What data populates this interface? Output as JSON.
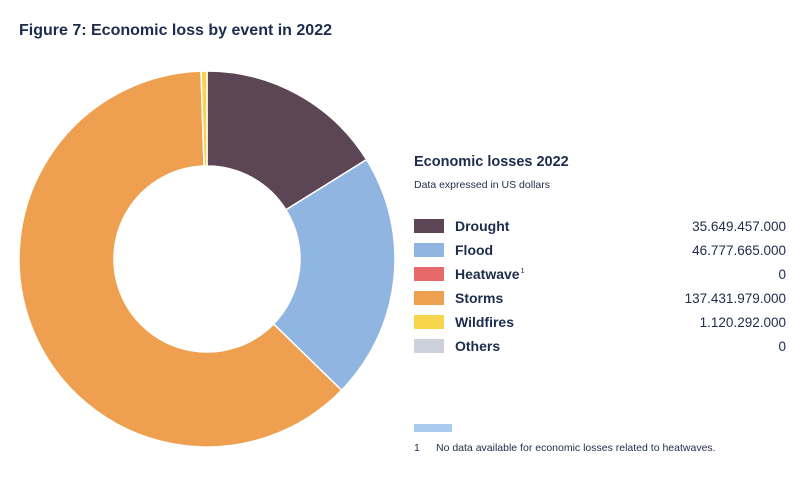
{
  "title": "Figure 7: Economic loss by event in 2022",
  "legend": {
    "title": "Economic losses 2022",
    "subtitle": "Data expressed in US dollars"
  },
  "footnote": {
    "marker": "1",
    "text": "No data available for economic losses related to heatwaves.",
    "bar_color": "#a9ccee"
  },
  "chart_data": {
    "type": "pie",
    "style": "donut",
    "title": "Figure 7: Economic loss by event in 2022",
    "categories": [
      {
        "name": "Drought",
        "value": 35649457000,
        "display": "35.649.457.000",
        "color": "#5c4655",
        "sup": ""
      },
      {
        "name": "Flood",
        "value": 46777665000,
        "display": "46.777.665.000",
        "color": "#8fb5e0",
        "sup": ""
      },
      {
        "name": "Heatwave",
        "value": 0,
        "display": "0",
        "color": "#e8696a",
        "sup": "1"
      },
      {
        "name": "Storms",
        "value": 137431979000,
        "display": "137.431.979.000",
        "color": "#eea050",
        "sup": ""
      },
      {
        "name": "Wildfires",
        "value": 1120292000,
        "display": "1.120.292.000",
        "color": "#f8d34c",
        "sup": ""
      },
      {
        "name": "Others",
        "value": 0,
        "display": "0",
        "color": "#cdd1dc",
        "sup": ""
      }
    ],
    "legend_position": "right"
  }
}
